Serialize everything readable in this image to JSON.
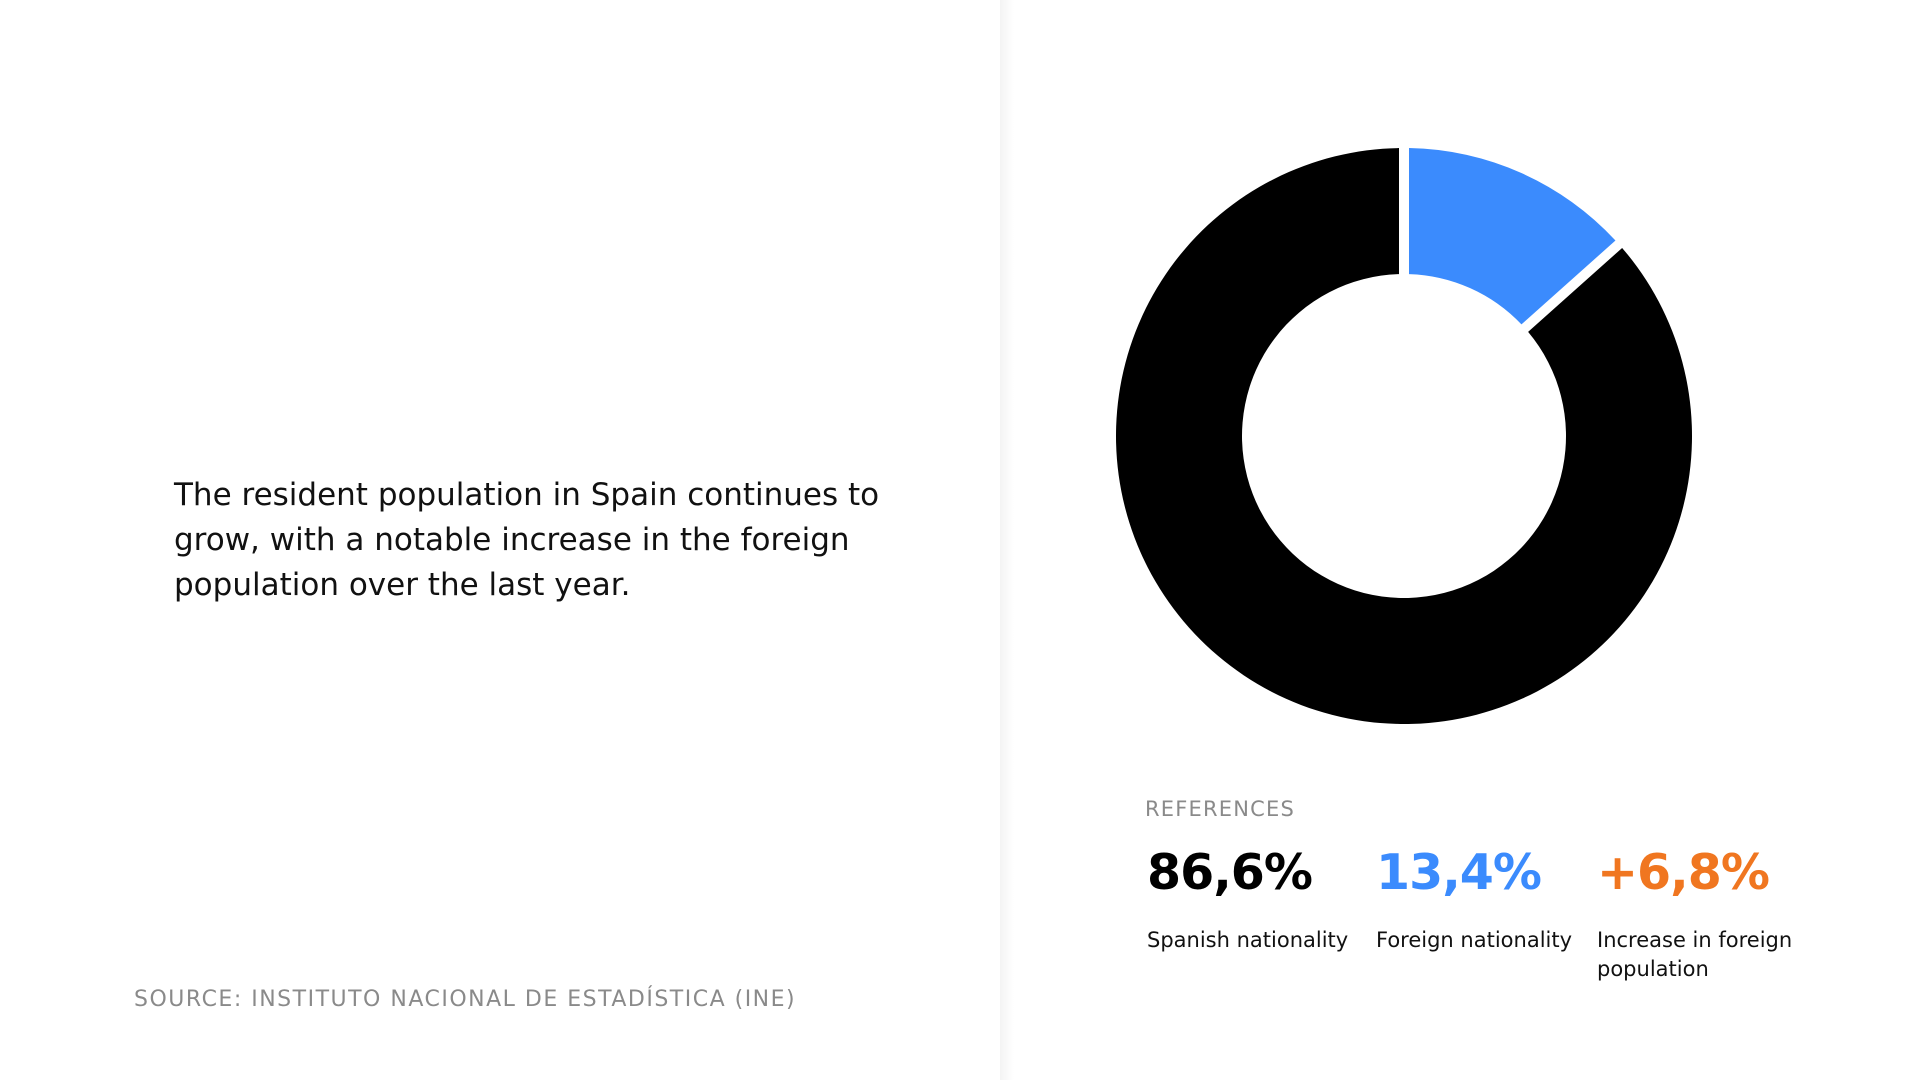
{
  "summary": "The resident population in Spain continues to grow, with a notable increase in the foreign population over the last year.",
  "source": "SOURCE: INSTITUTO NACIONAL DE ESTADÍSTICA (INE)",
  "references": {
    "title": "REFERENCES",
    "items": [
      {
        "value": "86,6%",
        "label": "Spanish nationality",
        "color": "#000000"
      },
      {
        "value": "13,4%",
        "label": "Foreign nationality",
        "color": "#3b8bfd"
      },
      {
        "value": "+6,8%",
        "label": "Increase in foreign population",
        "color": "#f07620"
      }
    ]
  },
  "chart_data": {
    "type": "pie",
    "variant": "donut",
    "categories": [
      "Foreign nationality",
      "Spanish nationality"
    ],
    "values": [
      13.4,
      86.6
    ],
    "colors": [
      "#3b8bfd",
      "#000000"
    ],
    "start": "top, clockwise"
  }
}
